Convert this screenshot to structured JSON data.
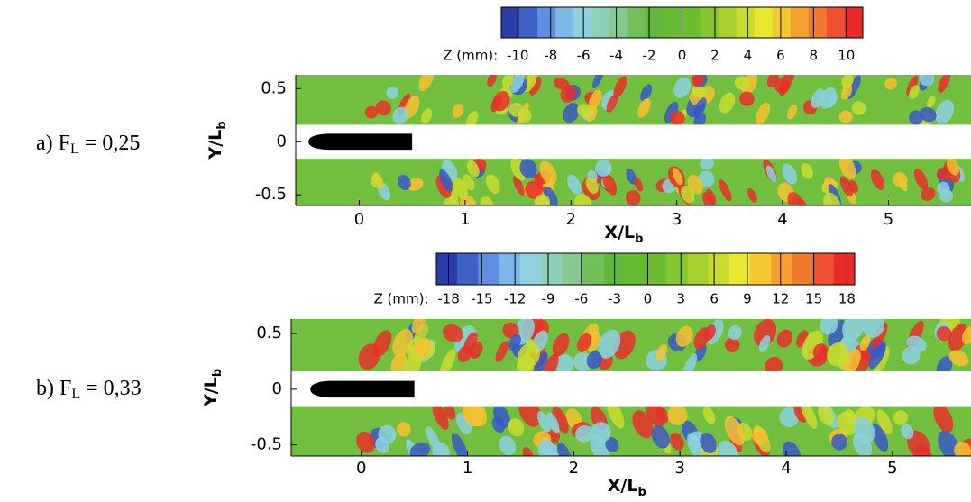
{
  "chart_data": [
    {
      "type": "contour",
      "label": {
        "prefix": "a) F",
        "subscript": "L",
        "suffix": " = 0,25"
      },
      "colorbar": {
        "label": "Z (mm):",
        "ticks": [
          -10,
          -8,
          -6,
          -4,
          -2,
          0,
          2,
          4,
          6,
          8,
          10
        ],
        "lim": [
          -11,
          11
        ],
        "colors": [
          "#2a3da8",
          "#3f62c8",
          "#5d8ee0",
          "#7fb6e8",
          "#8fd0dc",
          "#8dd0b8",
          "#86c890",
          "#72bf5a",
          "#62b83c",
          "#66ba30",
          "#6cbd30",
          "#86c630",
          "#a6d030",
          "#c8dc30",
          "#e8e830",
          "#f4c830",
          "#f4a030",
          "#f07a30",
          "#ee5030",
          "#e82a28"
        ]
      },
      "xlabel": "X/L",
      "xlabel_subscript": "b",
      "ylabel": "Y/L",
      "ylabel_subscript": "b",
      "xlim": [
        -0.6,
        5.78
      ],
      "xticks": [
        0,
        1,
        2,
        3,
        4,
        5
      ],
      "ylim": [
        -0.6,
        0.63
      ],
      "yticks": [
        -0.5,
        0,
        0.5
      ]
    },
    {
      "type": "contour",
      "label": {
        "prefix": "b) F",
        "subscript": "L",
        "suffix": " = 0,33"
      },
      "colorbar": {
        "label": "Z (mm):",
        "ticks": [
          -18,
          -15,
          -12,
          -9,
          -6,
          -3,
          0,
          3,
          6,
          9,
          12,
          15,
          18
        ],
        "lim": [
          -19.1,
          18.7
        ],
        "colors": [
          "#2a3da8",
          "#3f62c8",
          "#5d8ee0",
          "#7fb6e8",
          "#8fd0dc",
          "#8dd0b8",
          "#86c890",
          "#72bf5a",
          "#62b83c",
          "#66ba30",
          "#6cbd30",
          "#86c630",
          "#a6d030",
          "#c8dc30",
          "#e8e830",
          "#f4c830",
          "#f4a030",
          "#f07a30",
          "#ee5030",
          "#e82a28"
        ]
      },
      "xlabel": "X/L",
      "xlabel_subscript": "b",
      "ylabel": "Y/L",
      "ylabel_subscript": "b",
      "xlim": [
        -0.66,
        5.74
      ],
      "xticks": [
        0,
        1,
        2,
        3,
        4,
        5
      ],
      "ylim": [
        -0.6,
        0.63
      ],
      "yticks": [
        -0.5,
        0,
        0.5
      ]
    }
  ]
}
